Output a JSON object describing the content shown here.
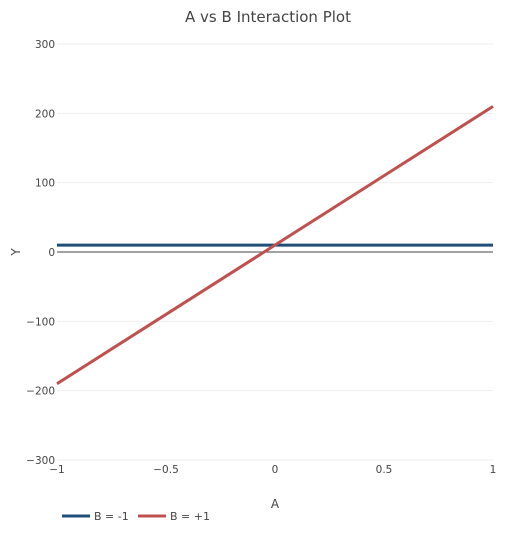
{
  "chart_data": {
    "type": "line",
    "title": "A vs B Interaction Plot",
    "xlabel": "A",
    "ylabel": "Y",
    "xlim": [
      -1,
      1
    ],
    "ylim": [
      -300,
      300
    ],
    "x_ticks": [
      -1,
      -0.5,
      0,
      0.5,
      1
    ],
    "x_tick_labels": [
      "−1",
      "−0.5",
      "0",
      "0.5",
      "1"
    ],
    "y_ticks": [
      -300,
      -200,
      -100,
      0,
      100,
      200,
      300
    ],
    "y_tick_labels": [
      "−300",
      "−200",
      "−100",
      "0",
      "100",
      "200",
      "300"
    ],
    "grid": true,
    "legend_position": "bottom-left",
    "series": [
      {
        "name": "B = -1",
        "color": "#1f4e79",
        "x": [
          -1,
          1
        ],
        "y": [
          10,
          10
        ]
      },
      {
        "name": "B = +1",
        "color": "#c0504d",
        "x": [
          -1,
          1
        ],
        "y": [
          -190,
          210
        ]
      }
    ]
  }
}
